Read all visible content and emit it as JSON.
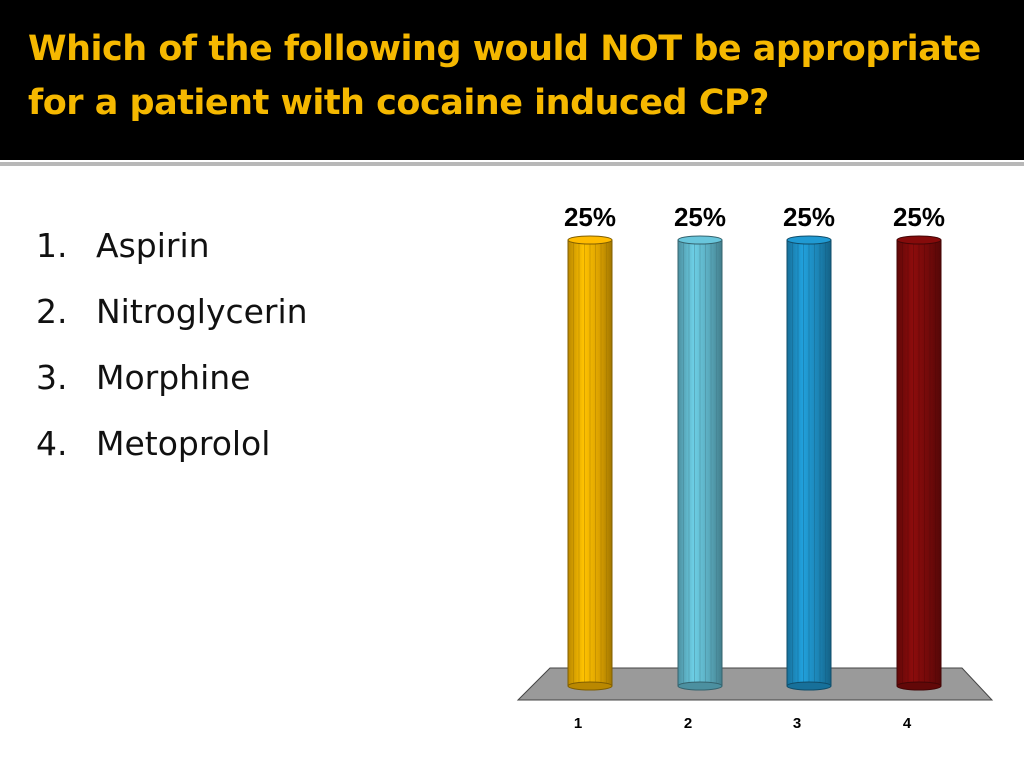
{
  "slide": {
    "title": "Which of the following would NOT be appropriate for a patient with cocaine induced CP?"
  },
  "options": [
    {
      "num": "1.",
      "text": "Aspirin"
    },
    {
      "num": "2.",
      "text": "Nitroglycerin"
    },
    {
      "num": "3.",
      "text": "Morphine"
    },
    {
      "num": "4.",
      "text": "Metoprolol"
    }
  ],
  "colors": {
    "title_bg": "#000000",
    "title_text": "#f5b800",
    "bar_1": "#e8aa00",
    "bar_2": "#5fb4c8",
    "bar_3": "#1d8cc0",
    "bar_4": "#7a0a0a",
    "floor": "#9a9a9a"
  },
  "chart_data": {
    "type": "bar",
    "categories": [
      "1",
      "2",
      "3",
      "4"
    ],
    "values": [
      25,
      25,
      25,
      25
    ],
    "value_labels": [
      "25%",
      "25%",
      "25%",
      "25%"
    ],
    "ylim": [
      0,
      25
    ],
    "grid": false,
    "style": "3d-cylinder"
  }
}
